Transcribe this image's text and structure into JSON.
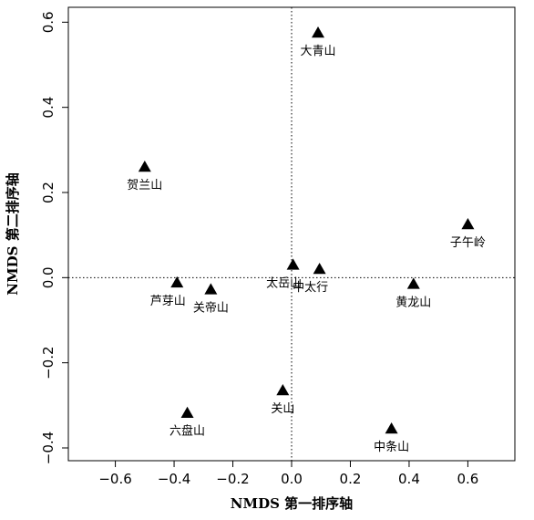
{
  "chart_data": {
    "type": "scatter",
    "title": "",
    "xlabel": "NMDS 第一排序轴",
    "ylabel": "NMDS 第二排序轴",
    "xlim": [
      -0.76,
      0.76
    ],
    "ylim": [
      -0.43,
      0.635
    ],
    "xticks": [
      -0.6,
      -0.4,
      -0.2,
      0.0,
      0.2,
      0.4,
      0.6
    ],
    "xtick_labels": [
      "−0.6",
      "−0.4",
      "−0.2",
      "0.0",
      "0.2",
      "0.4",
      "0.6"
    ],
    "yticks": [
      -0.4,
      -0.2,
      0.0,
      0.2,
      0.4,
      0.6
    ],
    "ytick_labels": [
      "−0.4",
      "−0.2",
      "0.0",
      "0.2",
      "0.4",
      "0.6"
    ],
    "reference_lines": {
      "x": 0,
      "y": 0,
      "style": "dotted"
    },
    "marker": "filled-triangle",
    "grid": false,
    "points": [
      {
        "label": "大青山",
        "x": 0.09,
        "y": 0.575,
        "label_pos": "below"
      },
      {
        "label": "贺兰山",
        "x": -0.5,
        "y": 0.26,
        "label_pos": "below"
      },
      {
        "label": "子午岭",
        "x": 0.6,
        "y": 0.125,
        "label_pos": "below"
      },
      {
        "label": "太岳山",
        "x": 0.005,
        "y": 0.03,
        "label_pos": "below-left"
      },
      {
        "label": "中太行",
        "x": 0.095,
        "y": 0.02,
        "label_pos": "below-left"
      },
      {
        "label": "黄龙山",
        "x": 0.415,
        "y": -0.015,
        "label_pos": "below"
      },
      {
        "label": "芦芽山",
        "x": -0.39,
        "y": -0.012,
        "label_pos": "below-left"
      },
      {
        "label": "关帝山",
        "x": -0.275,
        "y": -0.028,
        "label_pos": "below"
      },
      {
        "label": "关山",
        "x": -0.03,
        "y": -0.265,
        "label_pos": "below"
      },
      {
        "label": "六盘山",
        "x": -0.355,
        "y": -0.318,
        "label_pos": "below"
      },
      {
        "label": "中条山",
        "x": 0.34,
        "y": -0.355,
        "label_pos": "below"
      }
    ]
  }
}
